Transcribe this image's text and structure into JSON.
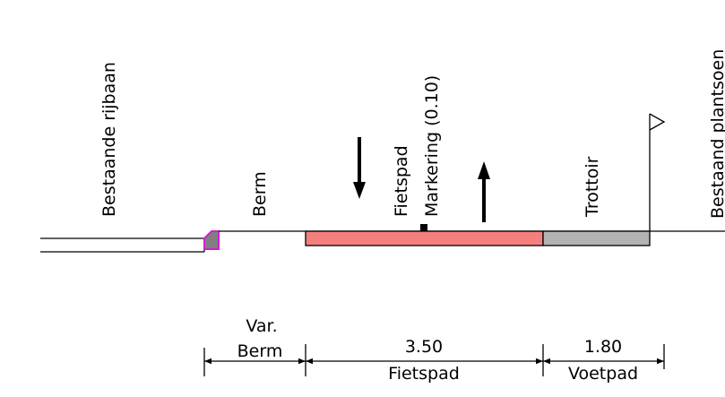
{
  "labels": {
    "road": "Bestaande rijbaan",
    "verge": "Berm",
    "cyclepath": "Fietspad",
    "marking": "Markering (0.10)",
    "sidewalk": "Trottoir",
    "planting": "Bestaand plantsoen"
  },
  "dimensions": [
    {
      "top": "Var.",
      "value": "Berm"
    },
    {
      "value": "3.50",
      "name": "Fietspad"
    },
    {
      "value": "1.80",
      "name": "Voetpad"
    }
  ]
}
